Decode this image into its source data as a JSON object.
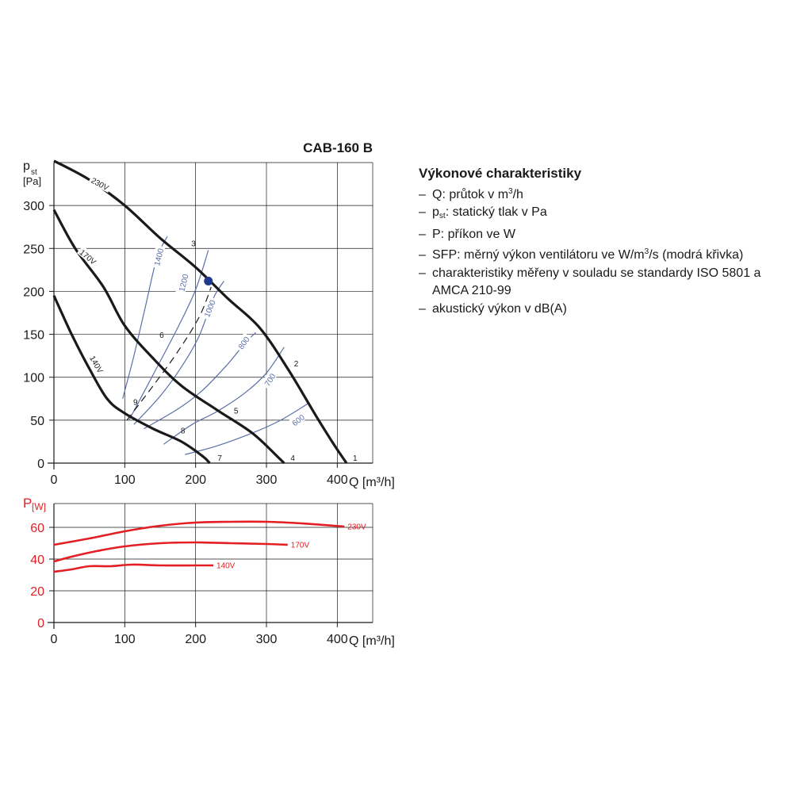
{
  "chart_data": [
    {
      "type": "line",
      "title": "CAB-160 B",
      "xlabel": "Q [m³/h]",
      "ylabel_main": "p",
      "ylabel_sub": "st",
      "ylabel_unit": "[Pa]",
      "xlim": [
        0,
        450
      ],
      "ylim": [
        0,
        350
      ],
      "xticks": [
        0,
        100,
        200,
        300,
        400
      ],
      "yticks": [
        0,
        50,
        100,
        150,
        200,
        250,
        300
      ],
      "grid": true,
      "series": [
        {
          "name": "230V",
          "color": "#1a1a1a",
          "points": [
            [
              0,
              352
            ],
            [
              50,
              330
            ],
            [
              100,
              300
            ],
            [
              150,
              262
            ],
            [
              200,
              228
            ],
            [
              245,
              192
            ],
            [
              290,
              158
            ],
            [
              330,
              110
            ],
            [
              370,
              55
            ],
            [
              395,
              22
            ],
            [
              413,
              0
            ]
          ]
        },
        {
          "name": "170V",
          "color": "#1a1a1a",
          "points": [
            [
              0,
              295
            ],
            [
              30,
              250
            ],
            [
              70,
              205
            ],
            [
              100,
              160
            ],
            [
              140,
              122
            ],
            [
              180,
              90
            ],
            [
              230,
              62
            ],
            [
              280,
              35
            ],
            [
              315,
              8
            ],
            [
              325,
              0
            ]
          ]
        },
        {
          "name": "140V",
          "color": "#1a1a1a",
          "points": [
            [
              0,
              195
            ],
            [
              25,
              150
            ],
            [
              50,
              110
            ],
            [
              75,
              75
            ],
            [
              100,
              58
            ],
            [
              140,
              40
            ],
            [
              180,
              25
            ],
            [
              210,
              8
            ],
            [
              220,
              0
            ]
          ]
        }
      ],
      "sfp_curves": [
        {
          "label": "1400",
          "points": [
            [
              97,
              75
            ],
            [
              112,
              122
            ],
            [
              128,
              178
            ],
            [
              145,
              238
            ],
            [
              160,
              264
            ]
          ]
        },
        {
          "label": "1200",
          "points": [
            [
              106,
              50
            ],
            [
              140,
              103
            ],
            [
              175,
              158
            ],
            [
              200,
              202
            ],
            [
              218,
              248
            ]
          ]
        },
        {
          "label": "1000",
          "points": [
            [
              113,
              45
            ],
            [
              150,
              78
            ],
            [
              180,
              112
            ],
            [
              205,
              148
            ],
            [
              225,
              192
            ],
            [
              240,
              212
            ]
          ]
        },
        {
          "label": "800",
          "points": [
            [
              127,
              40
            ],
            [
              175,
              63
            ],
            [
              210,
              85
            ],
            [
              245,
              115
            ],
            [
              270,
              140
            ],
            [
              285,
              152
            ]
          ]
        },
        {
          "label": "700",
          "points": [
            [
              155,
              22
            ],
            [
              195,
              45
            ],
            [
              230,
              60
            ],
            [
              270,
              82
            ],
            [
              300,
              105
            ],
            [
              325,
              135
            ]
          ]
        },
        {
          "label": "600",
          "points": [
            [
              185,
              10
            ],
            [
              230,
              20
            ],
            [
              280,
              35
            ],
            [
              320,
              50
            ],
            [
              360,
              70
            ]
          ]
        }
      ],
      "sfp_dashed": {
        "points": [
          [
            103,
            50
          ],
          [
            140,
            90
          ],
          [
            175,
            130
          ],
          [
            205,
            170
          ],
          [
            222,
            205
          ]
        ]
      },
      "operating_point": {
        "q": 218,
        "p": 212,
        "color": "#1e3a8a"
      },
      "point_labels": [
        {
          "label": "1",
          "q": 413,
          "p": 0
        },
        {
          "label": "2",
          "q": 330,
          "p": 110
        },
        {
          "label": "3",
          "q": 185,
          "p": 250
        },
        {
          "label": "4",
          "q": 325,
          "p": 0
        },
        {
          "label": "5",
          "q": 245,
          "p": 55
        },
        {
          "label": "6",
          "q": 140,
          "p": 143
        },
        {
          "label": "7",
          "q": 222,
          "p": 0
        },
        {
          "label": "8",
          "q": 170,
          "p": 32
        },
        {
          "label": "9",
          "q": 103,
          "p": 65
        }
      ],
      "curve_labels": [
        {
          "label": "230V",
          "q": 65,
          "p": 325,
          "angle": 28
        },
        {
          "label": "170V",
          "q": 48,
          "p": 240,
          "angle": 40
        },
        {
          "label": "140V",
          "q": 60,
          "p": 115,
          "angle": 60
        }
      ],
      "sfp_label_positions": [
        {
          "label": "1400",
          "q": 148,
          "p": 240,
          "angle": -76
        },
        {
          "label": "1200",
          "q": 183,
          "p": 210,
          "angle": -76
        },
        {
          "label": "1000",
          "q": 220,
          "p": 180,
          "angle": -68
        },
        {
          "label": "800",
          "q": 268,
          "p": 140,
          "angle": -55
        },
        {
          "label": "700",
          "q": 305,
          "p": 97,
          "angle": -58
        },
        {
          "label": "600",
          "q": 345,
          "p": 50,
          "angle": -38
        }
      ]
    },
    {
      "type": "line",
      "ylabel_main": "P",
      "ylabel_unit": "[W]",
      "xlabel": "Q [m³/h]",
      "xlim": [
        0,
        450
      ],
      "ylim": [
        0,
        75
      ],
      "xticks": [
        0,
        100,
        200,
        300,
        400
      ],
      "yticks": [
        0,
        20,
        40,
        60
      ],
      "grid": true,
      "series": [
        {
          "name": "230V",
          "color": "#e31e24",
          "points": [
            [
              0,
              49
            ],
            [
              50,
              53
            ],
            [
              100,
              57.5
            ],
            [
              150,
              61
            ],
            [
              200,
              63
            ],
            [
              250,
              63.5
            ],
            [
              300,
              63.5
            ],
            [
              350,
              62.5
            ],
            [
              410,
              60.5
            ]
          ]
        },
        {
          "name": "170V",
          "color": "#e31e24",
          "points": [
            [
              0,
              38.5
            ],
            [
              25,
              41.5
            ],
            [
              60,
              45
            ],
            [
              100,
              48
            ],
            [
              150,
              50
            ],
            [
              200,
              50.5
            ],
            [
              250,
              50
            ],
            [
              300,
              49.5
            ],
            [
              330,
              49
            ]
          ]
        },
        {
          "name": "140V",
          "color": "#e31e24",
          "points": [
            [
              0,
              32
            ],
            [
              25,
              33.5
            ],
            [
              50,
              35.5
            ],
            [
              80,
              35.5
            ],
            [
              110,
              36.5
            ],
            [
              150,
              36
            ],
            [
              200,
              36
            ],
            [
              225,
              36
            ]
          ]
        }
      ]
    }
  ],
  "legend": {
    "heading": "Výkonové charakteristiky",
    "items": [
      {
        "dash": "–",
        "text_before": "Q: průtok v m",
        "sup": "3",
        "text_after": "/h"
      },
      {
        "dash": "–",
        "text_before": "p",
        "sub": "st",
        "text_after": ": statický tlak v Pa"
      },
      {
        "dash": "–",
        "text": "P: příkon ve W"
      },
      {
        "dash": "–",
        "text_before": "SFP: měrný výkon ventilátoru ve W/m",
        "sup": "3",
        "text_after": "/s (modrá křivka)"
      },
      {
        "dash": "–",
        "text": "charakteristiky měřeny v souladu se standardy ISO 5801 a AMCA 210-99"
      },
      {
        "dash": "–",
        "text": "akustický výkon v dB(A)"
      }
    ]
  },
  "colors": {
    "fan_curve": "#1a1a1a",
    "sfp_curve": "#5b6fa8",
    "power_curve": "#e31e24",
    "grid": "#1a1a1a",
    "point": "#1e3a8a"
  }
}
